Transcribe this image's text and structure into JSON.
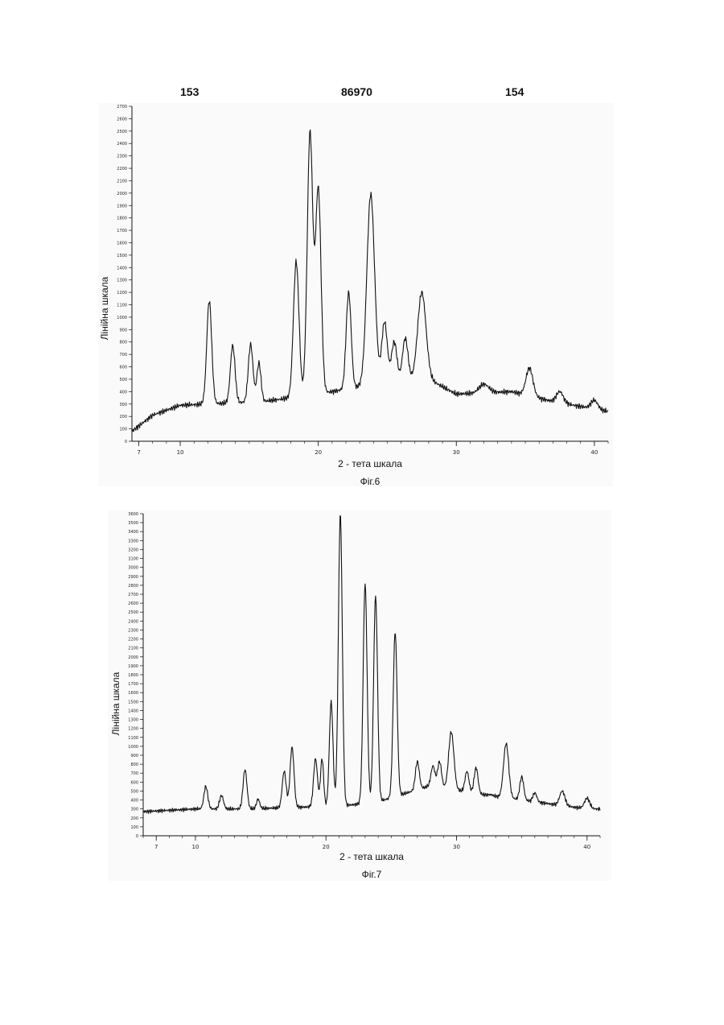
{
  "header": {
    "left_number": "153",
    "center_number": "86970",
    "right_number": "154"
  },
  "chart_data": [
    {
      "type": "line",
      "caption": "Фіг.6",
      "xlabel": "2 - тета шкала",
      "ylabel": "Лінійна шкала",
      "xlim": [
        6.5,
        41.0
      ],
      "ylim": [
        0,
        2700
      ],
      "x_ticks": [
        7,
        10,
        20,
        30,
        40
      ],
      "y_ticks": [
        0,
        100,
        200,
        300,
        400,
        500,
        600,
        700,
        800,
        900,
        1000,
        1100,
        1200,
        1300,
        1400,
        1500,
        1600,
        1700,
        1800,
        1900,
        2000,
        2100,
        2200,
        2300,
        2400,
        2500,
        2600,
        2700
      ],
      "line_color": "#111111",
      "grid": false,
      "baseline": [
        [
          6.5,
          80
        ],
        [
          8,
          210
        ],
        [
          10,
          290
        ],
        [
          12,
          300
        ],
        [
          16,
          320
        ],
        [
          20,
          380
        ],
        [
          24,
          460
        ],
        [
          28,
          500
        ],
        [
          30,
          380
        ],
        [
          34,
          400
        ],
        [
          37,
          320
        ],
        [
          41,
          240
        ]
      ],
      "peaks": [
        {
          "x": 12.1,
          "y": 1130,
          "w": 0.18
        },
        {
          "x": 13.8,
          "y": 770,
          "w": 0.17
        },
        {
          "x": 15.1,
          "y": 780,
          "w": 0.17
        },
        {
          "x": 15.7,
          "y": 630,
          "w": 0.15
        },
        {
          "x": 18.4,
          "y": 1450,
          "w": 0.2
        },
        {
          "x": 19.4,
          "y": 2480,
          "w": 0.2
        },
        {
          "x": 20.0,
          "y": 2030,
          "w": 0.2
        },
        {
          "x": 22.2,
          "y": 1200,
          "w": 0.18
        },
        {
          "x": 23.8,
          "y": 1990,
          "w": 0.28
        },
        {
          "x": 24.8,
          "y": 960,
          "w": 0.2
        },
        {
          "x": 25.5,
          "y": 800,
          "w": 0.2
        },
        {
          "x": 26.3,
          "y": 830,
          "w": 0.2
        },
        {
          "x": 27.5,
          "y": 1200,
          "w": 0.3
        },
        {
          "x": 32.0,
          "y": 460,
          "w": 0.35
        },
        {
          "x": 35.3,
          "y": 590,
          "w": 0.25
        },
        {
          "x": 37.5,
          "y": 400,
          "w": 0.25
        },
        {
          "x": 40.0,
          "y": 330,
          "w": 0.25
        }
      ]
    },
    {
      "type": "line",
      "caption": "Фіг.7",
      "xlabel": "2 - тета шкала",
      "ylabel": "Лінійна шкала",
      "xlim": [
        6.0,
        41.0
      ],
      "ylim": [
        0,
        3600
      ],
      "x_ticks": [
        7,
        10,
        20,
        30,
        40
      ],
      "y_ticks": [
        0,
        100,
        200,
        300,
        400,
        500,
        600,
        700,
        800,
        900,
        1000,
        1100,
        1200,
        1300,
        1400,
        1500,
        1600,
        1700,
        1800,
        1900,
        2000,
        2100,
        2200,
        2300,
        2400,
        2500,
        2600,
        2700,
        2800,
        2900,
        3000,
        3100,
        3200,
        3300,
        3400,
        3500,
        3600
      ],
      "line_color": "#111111",
      "grid": false,
      "baseline": [
        [
          6,
          270
        ],
        [
          10,
          300
        ],
        [
          14,
          300
        ],
        [
          18,
          320
        ],
        [
          21,
          330
        ],
        [
          24,
          380
        ],
        [
          28,
          560
        ],
        [
          32,
          460
        ],
        [
          36,
          380
        ],
        [
          40,
          300
        ],
        [
          41,
          300
        ]
      ],
      "peaks": [
        {
          "x": 10.8,
          "y": 550,
          "w": 0.15
        },
        {
          "x": 12.0,
          "y": 450,
          "w": 0.15
        },
        {
          "x": 13.8,
          "y": 740,
          "w": 0.15
        },
        {
          "x": 14.8,
          "y": 410,
          "w": 0.12
        },
        {
          "x": 16.8,
          "y": 720,
          "w": 0.15
        },
        {
          "x": 17.4,
          "y": 990,
          "w": 0.15
        },
        {
          "x": 19.2,
          "y": 860,
          "w": 0.15
        },
        {
          "x": 19.7,
          "y": 860,
          "w": 0.12
        },
        {
          "x": 20.4,
          "y": 1500,
          "w": 0.14
        },
        {
          "x": 21.1,
          "y": 3600,
          "w": 0.15
        },
        {
          "x": 23.0,
          "y": 2820,
          "w": 0.15
        },
        {
          "x": 23.8,
          "y": 2680,
          "w": 0.15
        },
        {
          "x": 25.3,
          "y": 2280,
          "w": 0.15
        },
        {
          "x": 27.0,
          "y": 830,
          "w": 0.15
        },
        {
          "x": 28.2,
          "y": 780,
          "w": 0.15
        },
        {
          "x": 28.7,
          "y": 830,
          "w": 0.15
        },
        {
          "x": 29.6,
          "y": 1160,
          "w": 0.2
        },
        {
          "x": 30.8,
          "y": 720,
          "w": 0.15
        },
        {
          "x": 31.5,
          "y": 760,
          "w": 0.15
        },
        {
          "x": 32.6,
          "y": 460,
          "w": 0.2
        },
        {
          "x": 33.8,
          "y": 1030,
          "w": 0.2
        },
        {
          "x": 35.0,
          "y": 660,
          "w": 0.15
        },
        {
          "x": 36.0,
          "y": 480,
          "w": 0.15
        },
        {
          "x": 38.1,
          "y": 500,
          "w": 0.2
        },
        {
          "x": 40.0,
          "y": 420,
          "w": 0.2
        }
      ]
    }
  ]
}
